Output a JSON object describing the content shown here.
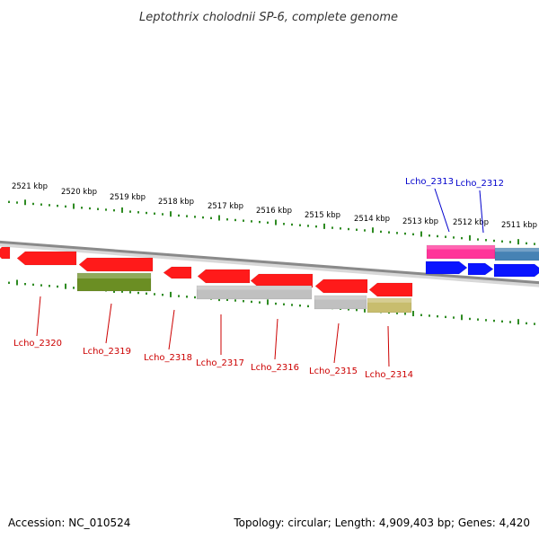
{
  "title": "Leptothrix cholodnii SP-6, complete genome",
  "footer": {
    "accession": "Accession: NC_010524",
    "summary": "Topology: circular; Length: 4,909,403 bp; Genes: 4,420"
  },
  "scale_labels": [
    "2521 kbp",
    "2520 kbp",
    "2519 kbp",
    "2518 kbp",
    "2517 kbp",
    "2516 kbp",
    "2515 kbp",
    "2514 kbp",
    "2513 kbp",
    "2512 kbp",
    "2511 kbp"
  ],
  "gene_labels": [
    {
      "text": "Lcho_2320",
      "strand": "minus"
    },
    {
      "text": "Lcho_2319",
      "strand": "minus"
    },
    {
      "text": "Lcho_2318",
      "strand": "minus"
    },
    {
      "text": "Lcho_2317",
      "strand": "minus"
    },
    {
      "text": "Lcho_2316",
      "strand": "minus"
    },
    {
      "text": "Lcho_2315",
      "strand": "minus"
    },
    {
      "text": "Lcho_2314",
      "strand": "minus"
    },
    {
      "text": "Lcho_2313",
      "strand": "plus"
    },
    {
      "text": "Lcho_2312",
      "strand": "plus"
    }
  ],
  "colors": {
    "minus_strand_gene": "#ff1a1a",
    "plus_strand_gene": "#0a14ff",
    "minus_label": "#cc0000",
    "plus_label": "#0000cc",
    "ruler_ticks": "#2e8b22",
    "backbone": "#8a8a8a",
    "feature_olive": "#6b8e23",
    "feature_gray": "#c0c0c0",
    "feature_khaki": "#c8bd6e",
    "feature_pink": "#ff3399",
    "feature_steelblue": "#4682b4"
  }
}
